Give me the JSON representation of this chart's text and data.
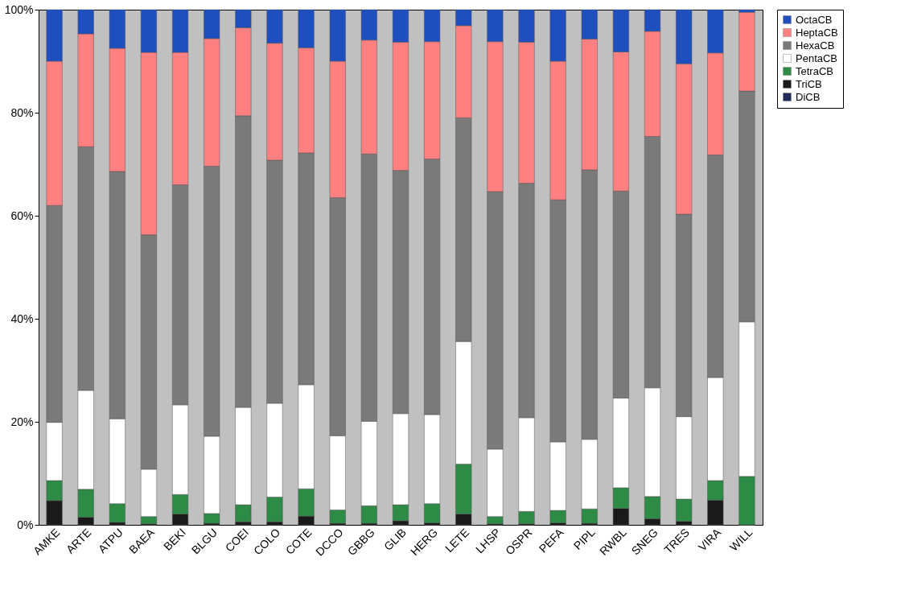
{
  "chart_data": {
    "type": "bar",
    "stacked": true,
    "categories": [
      "AMKE",
      "ARTE",
      "ATPU",
      "BAEA",
      "BEKI",
      "BLGU",
      "COEI",
      "COLO",
      "COTE",
      "DCCO",
      "GBBG",
      "GLIB",
      "HERG",
      "LETE",
      "LHSP",
      "OSPR",
      "PEFA",
      "PIPL",
      "RWBL",
      "SNEG",
      "TRES",
      "VIRA",
      "WILL"
    ],
    "series": [
      {
        "name": "DiCB",
        "color": "#1f2a5a",
        "values": [
          0,
          0,
          0,
          0,
          0,
          0,
          0,
          0,
          0,
          0,
          0,
          0,
          0,
          0,
          0,
          0,
          0,
          0,
          0,
          0,
          0,
          0,
          0
        ]
      },
      {
        "name": "TriCB",
        "color": "#1a1a1a",
        "values": [
          4.7,
          1.5,
          0.5,
          0.2,
          2.1,
          0.3,
          0.6,
          0.6,
          1.7,
          0.3,
          0.3,
          0.8,
          0.4,
          2.1,
          0.2,
          0.2,
          0.4,
          0.3,
          3.2,
          1.2,
          0.7,
          4.8,
          0
        ]
      },
      {
        "name": "TetraCB",
        "color": "#2e8b45",
        "values": [
          3.9,
          5.4,
          3.6,
          1.4,
          3.8,
          1.9,
          3.3,
          4.8,
          5.3,
          2.6,
          3.4,
          3.1,
          3.7,
          9.7,
          1.4,
          2.4,
          2.4,
          2.8,
          4.0,
          4.3,
          4.3,
          3.8,
          9.4
        ]
      },
      {
        "name": "PentaCB",
        "color": "#ffffff",
        "values": [
          11.3,
          19.2,
          16.5,
          9.2,
          17.4,
          15.0,
          18.9,
          18.2,
          20.2,
          14.4,
          16.4,
          17.7,
          17.3,
          23.8,
          13.1,
          18.2,
          13.3,
          13.5,
          17.4,
          21.1,
          16.0,
          20.0,
          30.0
        ]
      },
      {
        "name": "HexaCB",
        "color": "#7a7a7a",
        "values": [
          42.1,
          47.3,
          48.0,
          45.5,
          42.7,
          52.4,
          56.6,
          47.2,
          45.0,
          46.2,
          51.9,
          47.2,
          49.6,
          43.4,
          50.0,
          45.5,
          47.0,
          52.3,
          40.2,
          48.8,
          39.3,
          43.2,
          44.8
        ]
      },
      {
        "name": "HeptaCB",
        "color": "#ff8080",
        "values": [
          28.0,
          21.9,
          23.9,
          35.4,
          25.7,
          24.8,
          17.1,
          22.7,
          20.4,
          26.5,
          22.1,
          24.9,
          22.8,
          17.9,
          29.1,
          27.4,
          26.9,
          25.4,
          27.0,
          20.4,
          29.2,
          19.8,
          15.3
        ]
      },
      {
        "name": "OctaCB",
        "color": "#1f4fbf",
        "values": [
          10.0,
          4.7,
          7.5,
          8.3,
          8.3,
          5.6,
          3.5,
          6.5,
          7.4,
          10.0,
          5.9,
          6.3,
          6.2,
          3.1,
          6.2,
          6.3,
          10.0,
          5.7,
          8.2,
          4.2,
          10.5,
          8.4,
          0.5
        ]
      }
    ],
    "ylim": [
      0,
      100
    ],
    "yticks": [
      {
        "value": 0,
        "label": "0%"
      },
      {
        "value": 20,
        "label": "20%"
      },
      {
        "value": 40,
        "label": "40%"
      },
      {
        "value": 60,
        "label": "60%"
      },
      {
        "value": 80,
        "label": "80%"
      },
      {
        "value": 100,
        "label": "100%"
      }
    ],
    "grid": false,
    "legend": "right"
  }
}
